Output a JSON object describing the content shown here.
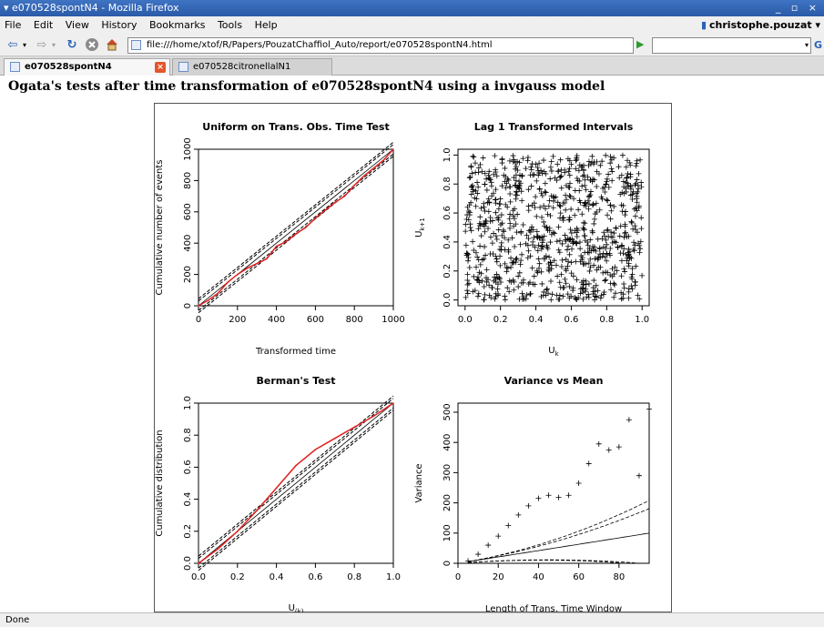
{
  "window": {
    "title": "e070528spontN4 - Mozilla Firefox",
    "controls": "_ ▫ ×"
  },
  "menu": {
    "items": [
      "File",
      "Edit",
      "View",
      "History",
      "Bookmarks",
      "Tools",
      "Help"
    ],
    "user": "christophe.pouzat"
  },
  "nav": {
    "url": "file:///home/xtof/R/Papers/PouzatChaffiol_Auto/report/e070528spontN4.html",
    "search_placeholder": ""
  },
  "tabs": [
    {
      "label": "e070528spontN4",
      "active": true
    },
    {
      "label": "e070528citronellalN1",
      "active": false
    }
  ],
  "page": {
    "heading": "Ogata's tests after time transformation of e070528spontN4 using a invgauss model"
  },
  "status": {
    "text": "Done"
  },
  "colors": {
    "titlebar": "#2f63b3",
    "red_line": "#e02020"
  },
  "chart_data": [
    {
      "type": "line",
      "title": "Uniform on Trans. Obs. Time Test",
      "xlabel": "Transformed time",
      "ylabel": "Cumulative number of events",
      "xlim": [
        0,
        1000
      ],
      "ylim": [
        0,
        1000
      ],
      "x_ticks": [
        "0",
        "200",
        "400",
        "600",
        "800",
        "1000"
      ],
      "y_ticks": [
        "0",
        "200",
        "400",
        "600",
        "800",
        "1000"
      ],
      "series": [
        {
          "x": [
            0,
            50,
            100,
            150,
            200,
            250,
            300,
            350,
            400,
            450,
            500,
            550,
            600,
            650,
            700,
            750,
            800,
            850,
            900,
            950,
            1000
          ],
          "y": [
            0,
            35,
            80,
            150,
            200,
            240,
            270,
            300,
            380,
            410,
            460,
            500,
            560,
            610,
            660,
            700,
            770,
            830,
            880,
            930,
            1000
          ]
        }
      ],
      "reference_lines": "diagonal and two confidence bands (dashed)"
    },
    {
      "type": "scatter",
      "title": "Lag 1 Transformed Intervals",
      "xlabel": "U_k",
      "ylabel": "U_k+1",
      "xlim": [
        0,
        1
      ],
      "ylim": [
        0,
        1
      ],
      "x_ticks": [
        "0.0",
        "0.2",
        "0.4",
        "0.6",
        "0.8",
        "1.0"
      ],
      "y_ticks": [
        "0.0",
        "0.2",
        "0.4",
        "0.6",
        "0.8",
        "1.0"
      ],
      "points": "approximately 1000 points scattered roughly uniformly over the unit square"
    },
    {
      "type": "line",
      "title": "Berman's Test",
      "xlabel": "U_(k)",
      "ylabel": "Cumulative distribution",
      "xlim": [
        0,
        1
      ],
      "ylim": [
        0,
        1
      ],
      "x_ticks": [
        "0.0",
        "0.2",
        "0.4",
        "0.6",
        "0.8",
        "1.0"
      ],
      "y_ticks": [
        "0.0",
        "0.2",
        "0.4",
        "0.6",
        "0.8",
        "1.0"
      ],
      "series": [
        {
          "x": [
            0,
            0.1,
            0.2,
            0.3,
            0.4,
            0.5,
            0.6,
            0.7,
            0.8,
            0.9,
            1.0
          ],
          "y": [
            0,
            0.09,
            0.2,
            0.33,
            0.47,
            0.61,
            0.71,
            0.78,
            0.85,
            0.92,
            1.0
          ]
        }
      ],
      "reference_lines": "diagonal and two confidence bands (dashed)"
    },
    {
      "type": "scatter",
      "title": "Variance vs Mean",
      "xlabel": "Length of Trans. Time Window",
      "ylabel": "Variance",
      "xlim": [
        0,
        95
      ],
      "ylim": [
        0,
        530
      ],
      "x_ticks": [
        "0",
        "20",
        "40",
        "60",
        "80"
      ],
      "y_ticks": [
        "0",
        "100",
        "200",
        "300",
        "400",
        "500"
      ],
      "x": [
        5,
        10,
        15,
        20,
        25,
        30,
        35,
        40,
        45,
        50,
        55,
        60,
        65,
        70,
        75,
        80,
        85,
        90,
        95
      ],
      "y": [
        8,
        30,
        60,
        90,
        125,
        160,
        190,
        215,
        225,
        218,
        225,
        265,
        330,
        395,
        375,
        385,
        475,
        290,
        510
      ],
      "reference_lines": "expected line y = x and confidence curves (dashed)"
    }
  ]
}
